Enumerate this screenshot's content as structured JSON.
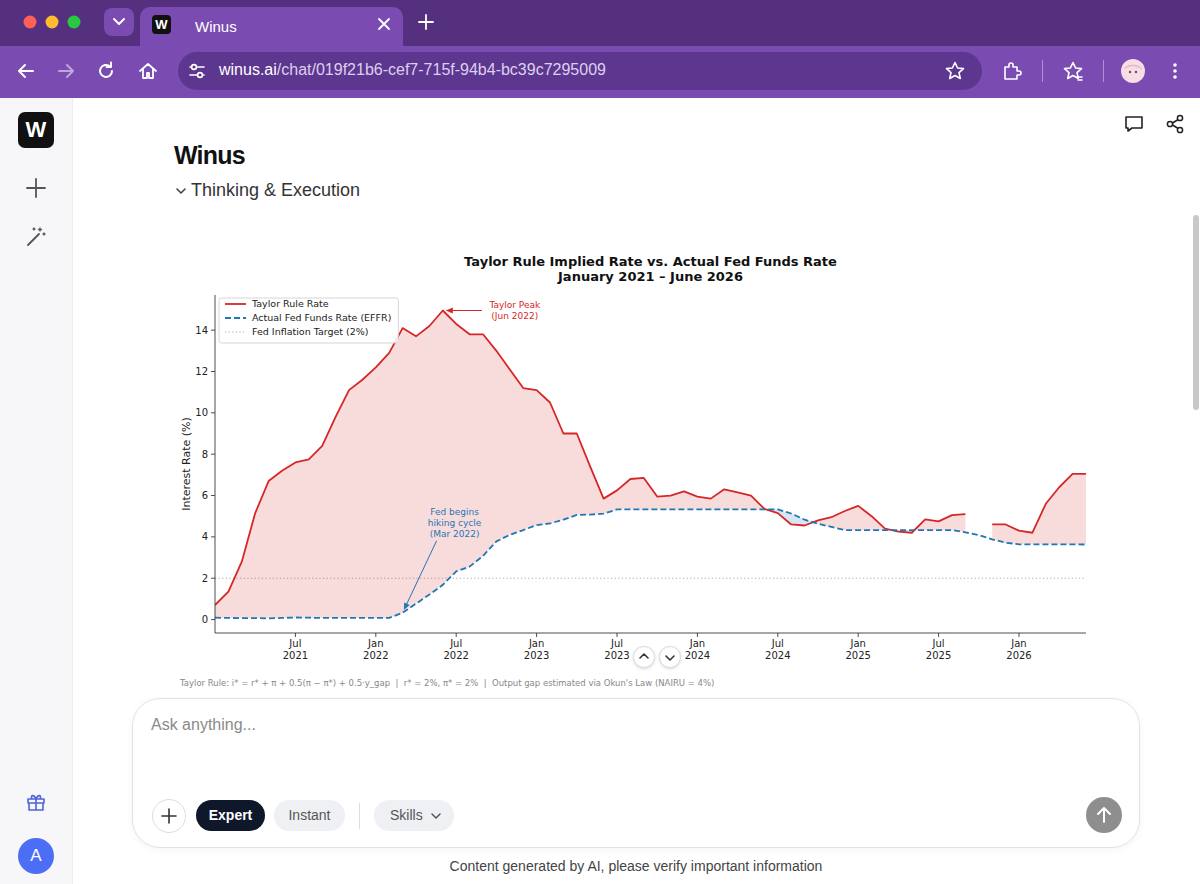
{
  "browser": {
    "tab_title": "Winus",
    "favicon_letter": "W",
    "url_host": "winus.ai",
    "url_path": "/chat/019f21b6-cef7-715f-94b4-bc39c7295009"
  },
  "app": {
    "logo_letter": "W",
    "brand": "Winus",
    "section": "Thinking & Execution",
    "input_placeholder": "Ask anything...",
    "modes": [
      "Expert",
      "Instant"
    ],
    "active_mode": "Expert",
    "skills": "Skills",
    "disclaimer": "Content generated by AI, please verify important information",
    "user_initial": "A"
  },
  "chart_data": {
    "type": "line",
    "title": "Taylor Rule Implied Rate vs. Actual Fed Funds Rate",
    "subtitle": "January 2021 – June 2026",
    "y_label": "Interest Rate (%)",
    "footnote": "Taylor Rule: i* = r* + π + 0.5(π − π*) + 0.5·y_gap  |  r* = 2%, π* = 2%  |  Output gap estimated via Okun's Law (NAIRU = 4%)",
    "x": [
      "2021-01",
      "2021-02",
      "2021-03",
      "2021-04",
      "2021-05",
      "2021-06",
      "2021-07",
      "2021-08",
      "2021-09",
      "2021-10",
      "2021-11",
      "2021-12",
      "2022-01",
      "2022-02",
      "2022-03",
      "2022-04",
      "2022-05",
      "2022-06",
      "2022-07",
      "2022-08",
      "2022-09",
      "2022-10",
      "2022-11",
      "2022-12",
      "2023-01",
      "2023-02",
      "2023-03",
      "2023-04",
      "2023-05",
      "2023-06",
      "2023-07",
      "2023-08",
      "2023-09",
      "2023-10",
      "2023-11",
      "2023-12",
      "2024-01",
      "2024-02",
      "2024-03",
      "2024-04",
      "2024-05",
      "2024-06",
      "2024-07",
      "2024-08",
      "2024-09",
      "2024-10",
      "2024-11",
      "2024-12",
      "2025-01",
      "2025-02",
      "2025-03",
      "2025-04",
      "2025-05",
      "2025-06",
      "2025-07",
      "2025-08",
      "2025-09",
      "2025-10",
      "2025-11",
      "2025-12",
      "2026-01",
      "2026-02",
      "2026-03",
      "2026-04",
      "2026-05",
      "2026-06"
    ],
    "xlim": [
      "2021-01",
      "2026-06"
    ],
    "xticks": [
      {
        "value": "2021-07",
        "label": "Jul 2021"
      },
      {
        "value": "2022-01",
        "label": "Jan 2022"
      },
      {
        "value": "2022-07",
        "label": "Jul 2022"
      },
      {
        "value": "2023-01",
        "label": "Jan 2023"
      },
      {
        "value": "2023-07",
        "label": "Jul 2023"
      },
      {
        "value": "2024-01",
        "label": "Jan 2024"
      },
      {
        "value": "2024-07",
        "label": "Jul 2024"
      },
      {
        "value": "2025-01",
        "label": "Jan 2025"
      },
      {
        "value": "2025-07",
        "label": "Jul 2025"
      },
      {
        "value": "2026-01",
        "label": "Jan 2026"
      }
    ],
    "ylim": [
      -0.65,
      15.7
    ],
    "yticks": [
      0,
      2,
      4,
      6,
      8,
      10,
      12,
      14
    ],
    "grid": false,
    "legend": "upper left",
    "series": [
      {
        "name": "Taylor Rule Rate",
        "color": "#d62728",
        "line_style": "solid",
        "values": [
          0.7,
          1.35,
          2.8,
          5.15,
          6.7,
          7.2,
          7.6,
          7.75,
          8.4,
          9.8,
          11.1,
          11.6,
          12.2,
          12.9,
          14.1,
          13.7,
          14.2,
          14.95,
          14.3,
          13.8,
          13.8,
          13.0,
          12.1,
          11.2,
          11.1,
          10.5,
          9.0,
          9.0,
          7.4,
          5.85,
          6.25,
          6.8,
          6.85,
          5.95,
          6.0,
          6.2,
          5.95,
          5.85,
          6.3,
          6.15,
          6.0,
          5.35,
          5.15,
          4.6,
          4.55,
          4.8,
          4.95,
          5.25,
          5.5,
          5.0,
          4.4,
          4.25,
          4.2,
          4.85,
          4.75,
          5.05,
          5.1,
          null,
          4.6,
          4.6,
          4.3,
          4.2,
          5.6,
          6.4,
          7.05,
          7.05
        ]
      },
      {
        "name": "Actual Fed Funds Rate (EFFR)",
        "color": "#1f77b4",
        "line_style": "dashed",
        "values": [
          0.09,
          0.08,
          0.07,
          0.07,
          0.06,
          0.08,
          0.1,
          0.09,
          0.08,
          0.08,
          0.08,
          0.08,
          0.08,
          0.08,
          0.33,
          0.77,
          1.21,
          1.68,
          2.33,
          2.56,
          3.08,
          3.78,
          4.1,
          4.33,
          4.57,
          4.65,
          4.83,
          5.06,
          5.08,
          5.12,
          5.33,
          5.33,
          5.33,
          5.33,
          5.33,
          5.33,
          5.33,
          5.33,
          5.33,
          5.33,
          5.33,
          5.33,
          5.33,
          5.13,
          4.83,
          4.64,
          4.48,
          4.33,
          4.33,
          4.33,
          4.33,
          4.33,
          4.33,
          4.33,
          4.33,
          4.33,
          4.22,
          4.09,
          3.88,
          3.72,
          3.64,
          3.64,
          3.64,
          3.64,
          3.64,
          3.63
        ]
      }
    ],
    "reference_lines": [
      {
        "name": "Fed Inflation Target (2%)",
        "value": 2,
        "color": "#aaaaaa",
        "line_style": "dotted"
      }
    ],
    "annotations": [
      {
        "text": "Taylor Peak\n(Jun 2022)",
        "x": "2022-06",
        "y": 14.95,
        "color": "#d62728"
      },
      {
        "text": "Fed begins\nhiking cycle\n(Mar 2022)",
        "x": "2022-03",
        "y": 0.33,
        "color": "#1f77b4"
      }
    ]
  }
}
